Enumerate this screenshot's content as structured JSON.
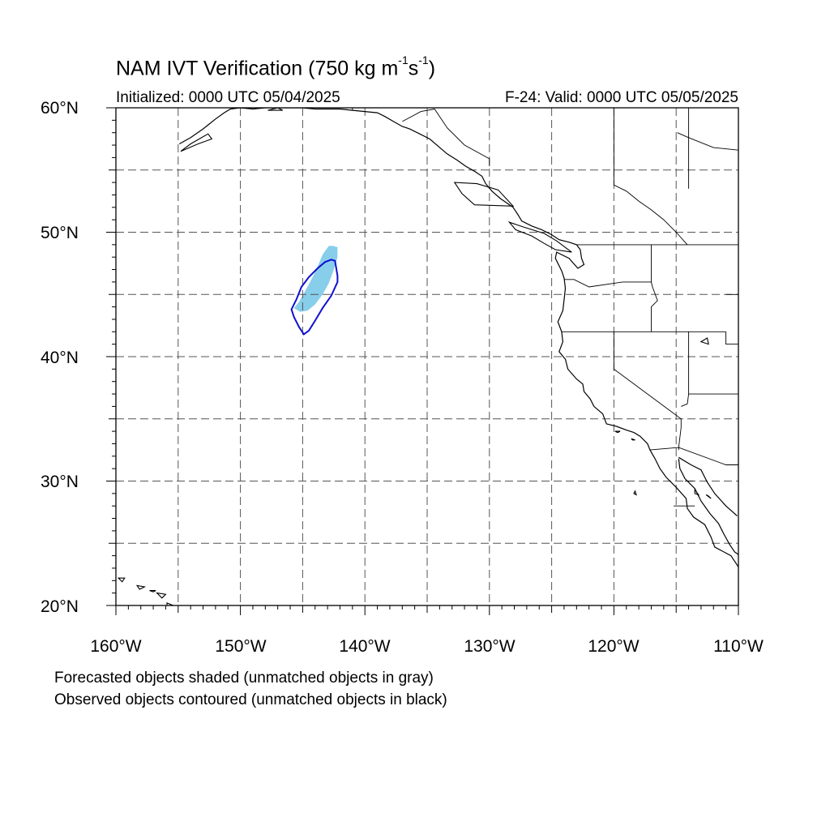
{
  "title": {
    "main": "NAM IVT Verification (750 kg m",
    "exp1": "-1",
    "mid": "s",
    "exp2": "-1",
    "end": ")"
  },
  "subtitle_left": "Initialized: 0000 UTC 05/04/2025",
  "subtitle_right": "F-24: Valid: 0000 UTC 05/05/2025",
  "notes": [
    "Forecasted objects shaded (unmatched objects in gray)",
    "Observed objects contoured (unmatched objects in black)"
  ],
  "map": {
    "lon_range": [
      -160,
      -110
    ],
    "lat_range": [
      20,
      60
    ],
    "lat_labels": [
      "60°N",
      "50°N",
      "40°N",
      "30°N",
      "20°N"
    ],
    "lon_labels": [
      "160°W",
      "150°W",
      "140°W",
      "130°W",
      "120°W",
      "110°W"
    ],
    "grid_style": "dashed every 5 degrees",
    "colors": {
      "forecast_object": "#87CEEB",
      "observed_object": "#1010D0",
      "coastline": "#000000",
      "grid": "#555555"
    },
    "forecast_object": [
      [
        -145.7,
        43.9
      ],
      [
        -145.3,
        44.4
      ],
      [
        -144.9,
        45.1
      ],
      [
        -144.4,
        46.0
      ],
      [
        -143.9,
        47.0
      ],
      [
        -143.4,
        48.2
      ],
      [
        -142.9,
        48.9
      ],
      [
        -142.6,
        48.9
      ],
      [
        -142.2,
        48.8
      ],
      [
        -142.2,
        48.0
      ],
      [
        -142.5,
        47.0
      ],
      [
        -142.9,
        45.9
      ],
      [
        -143.4,
        45.0
      ],
      [
        -144.0,
        44.2
      ],
      [
        -144.6,
        43.7
      ],
      [
        -145.2,
        43.6
      ]
    ],
    "observed_object": [
      [
        -145.9,
        43.8
      ],
      [
        -145.5,
        44.6
      ],
      [
        -145.1,
        45.6
      ],
      [
        -144.5,
        46.4
      ],
      [
        -143.8,
        47.1
      ],
      [
        -143.2,
        47.6
      ],
      [
        -142.7,
        47.8
      ],
      [
        -142.4,
        47.7
      ],
      [
        -142.2,
        46.5
      ],
      [
        -142.2,
        46.0
      ],
      [
        -142.7,
        44.9
      ],
      [
        -143.4,
        43.9
      ],
      [
        -144.0,
        42.9
      ],
      [
        -144.5,
        42.1
      ],
      [
        -144.9,
        41.8
      ],
      [
        -145.3,
        42.4
      ],
      [
        -145.7,
        43.2
      ]
    ],
    "coast_mainland": [
      [
        -154.9,
        57.1
      ],
      [
        -154.0,
        57.6
      ],
      [
        -153.0,
        58.3
      ],
      [
        -152.0,
        59.1
      ],
      [
        -151.3,
        59.6
      ],
      [
        -150.8,
        59.9
      ],
      [
        -150.0,
        60.0
      ],
      [
        -149.0,
        59.9
      ],
      [
        -148.0,
        60.0
      ],
      [
        -146.0,
        60.0
      ],
      [
        -145.0,
        60.0
      ],
      [
        -144.0,
        59.9
      ],
      [
        -142.0,
        59.9
      ],
      [
        -141.0,
        59.8
      ],
      [
        -140.0,
        59.7
      ],
      [
        -139.0,
        59.6
      ],
      [
        -138.4,
        59.3
      ],
      [
        -137.7,
        58.9
      ],
      [
        -137.0,
        58.5
      ],
      [
        -136.4,
        58.3
      ],
      [
        -135.6,
        57.9
      ],
      [
        -134.8,
        57.5
      ],
      [
        -134.1,
        56.9
      ],
      [
        -133.4,
        56.3
      ],
      [
        -132.6,
        55.8
      ],
      [
        -131.9,
        55.3
      ],
      [
        -131.2,
        54.9
      ],
      [
        -130.6,
        54.5
      ],
      [
        -130.3,
        53.9
      ],
      [
        -129.8,
        53.3
      ],
      [
        -129.1,
        52.7
      ],
      [
        -128.1,
        52.0
      ],
      [
        -127.7,
        51.4
      ],
      [
        -127.4,
        50.9
      ],
      [
        -126.6,
        50.5
      ],
      [
        -125.8,
        50.2
      ],
      [
        -125.0,
        49.8
      ],
      [
        -124.4,
        49.4
      ],
      [
        -123.6,
        49.2
      ],
      [
        -123.0,
        49.0
      ],
      [
        -122.7,
        48.6
      ],
      [
        -122.6,
        47.9
      ],
      [
        -122.4,
        47.4
      ],
      [
        -122.9,
        47.1
      ],
      [
        -123.6,
        47.9
      ],
      [
        -124.6,
        48.4
      ],
      [
        -124.7,
        47.9
      ],
      [
        -124.2,
        46.9
      ],
      [
        -124.0,
        46.3
      ],
      [
        -123.9,
        45.5
      ],
      [
        -124.0,
        44.6
      ],
      [
        -124.1,
        43.7
      ],
      [
        -124.5,
        42.8
      ],
      [
        -124.2,
        42.0
      ],
      [
        -124.1,
        41.2
      ],
      [
        -124.4,
        40.4
      ],
      [
        -123.9,
        39.8
      ],
      [
        -123.7,
        39.0
      ],
      [
        -123.0,
        38.2
      ],
      [
        -122.5,
        37.8
      ],
      [
        -122.4,
        37.2
      ],
      [
        -121.9,
        36.6
      ],
      [
        -121.6,
        36.0
      ],
      [
        -120.9,
        35.4
      ],
      [
        -120.6,
        34.6
      ],
      [
        -119.8,
        34.4
      ],
      [
        -119.0,
        34.1
      ],
      [
        -118.4,
        33.9
      ],
      [
        -117.9,
        33.6
      ],
      [
        -117.3,
        33.0
      ],
      [
        -117.1,
        32.5
      ],
      [
        -116.7,
        31.8
      ],
      [
        -116.3,
        31.0
      ],
      [
        -115.8,
        30.3
      ],
      [
        -115.0,
        29.5
      ],
      [
        -114.2,
        28.6
      ],
      [
        -114.1,
        27.8
      ],
      [
        -113.6,
        27.1
      ],
      [
        -112.7,
        26.5
      ],
      [
        -112.2,
        25.5
      ],
      [
        -111.9,
        24.7
      ],
      [
        -110.6,
        24.0
      ],
      [
        -110.0,
        23.1
      ]
    ],
    "coast_gulf": [
      [
        -114.8,
        31.8
      ],
      [
        -114.7,
        31.0
      ],
      [
        -114.3,
        30.2
      ],
      [
        -113.5,
        29.4
      ],
      [
        -113.0,
        28.4
      ],
      [
        -112.3,
        27.4
      ],
      [
        -111.6,
        26.6
      ],
      [
        -111.2,
        25.8
      ],
      [
        -110.7,
        24.9
      ],
      [
        -110.3,
        24.3
      ],
      [
        -110.0,
        24.1
      ]
    ],
    "coast_gulf_east": [
      [
        -114.8,
        31.9
      ],
      [
        -113.8,
        31.3
      ],
      [
        -113.0,
        30.9
      ],
      [
        -112.5,
        29.9
      ],
      [
        -111.9,
        29.0
      ],
      [
        -111.0,
        28.0
      ],
      [
        -110.1,
        27.2
      ]
    ],
    "boundaries": [
      [
        [
          -123.0,
          49.0
        ],
        [
          -110.0,
          49.0
        ]
      ],
      [
        [
          -117.0,
          49.0
        ],
        [
          -117.0,
          46.0
        ],
        [
          -116.9,
          45.6
        ],
        [
          -116.5,
          44.5
        ],
        [
          -117.0,
          44.0
        ],
        [
          -117.0,
          42.0
        ]
      ],
      [
        [
          -124.0,
          46.2
        ],
        [
          -123.2,
          46.2
        ],
        [
          -122.0,
          45.6
        ],
        [
          -119.3,
          46.0
        ],
        [
          -117.0,
          46.0
        ]
      ],
      [
        [
          -124.2,
          42.0
        ],
        [
          -111.0,
          42.0
        ]
      ],
      [
        [
          -120.0,
          42.0
        ],
        [
          -120.0,
          39.0
        ],
        [
          -114.6,
          35.0
        ],
        [
          -114.6,
          34.3
        ],
        [
          -114.8,
          32.7
        ],
        [
          -114.8,
          32.5
        ]
      ],
      [
        [
          -114.0,
          42.0
        ],
        [
          -114.0,
          37.0
        ],
        [
          -114.1,
          36.2
        ],
        [
          -114.6,
          36.0
        ]
      ],
      [
        [
          -114.0,
          37.0
        ],
        [
          -110.0,
          37.0
        ]
      ],
      [
        [
          -111.0,
          45.0
        ],
        [
          -110.0,
          45.0
        ]
      ],
      [
        [
          -111.0,
          42.0
        ],
        [
          -111.0,
          41.0
        ],
        [
          -110.0,
          41.0
        ]
      ],
      [
        [
          -117.1,
          32.5
        ],
        [
          -114.8,
          32.7
        ],
        [
          -111.0,
          31.3
        ],
        [
          -110.0,
          31.3
        ]
      ],
      [
        [
          -123.0,
          49.0
        ],
        [
          -123.0,
          49.0
        ]
      ],
      [
        [
          -114.0,
          53.5
        ],
        [
          -114.0,
          60.0
        ]
      ],
      [
        [
          -120.0,
          53.8
        ],
        [
          -120.0,
          60.0
        ]
      ],
      [
        [
          -120.0,
          53.8
        ],
        [
          -119.0,
          53.3
        ],
        [
          -118.0,
          52.5
        ],
        [
          -117.0,
          51.8
        ],
        [
          -116.0,
          51.0
        ],
        [
          -115.0,
          50.0
        ],
        [
          -114.1,
          49.0
        ]
      ],
      [
        [
          -141.0,
          60.0
        ],
        [
          -141.0,
          59.8
        ]
      ],
      [
        [
          -137.0,
          58.9
        ],
        [
          -135.5,
          59.7
        ],
        [
          -134.4,
          59.9
        ],
        [
          -133.4,
          58.4
        ],
        [
          -132.0,
          57.0
        ],
        [
          -130.0,
          55.9
        ],
        [
          -130.0,
          55.3
        ]
      ],
      [
        [
          -114.3,
          30.0
        ],
        [
          -113.6,
          30.0
        ]
      ],
      [
        [
          -115.2,
          28.0
        ],
        [
          -113.5,
          28.0
        ]
      ]
    ],
    "islands": [
      [
        [
          -128.1,
          52.1
        ],
        [
          -129.3,
          53.4
        ],
        [
          -131.0,
          53.9
        ],
        [
          -132.8,
          54.0
        ],
        [
          -132.2,
          53.1
        ],
        [
          -131.2,
          52.2
        ],
        [
          -128.1,
          52.1
        ]
      ],
      [
        [
          -128.4,
          50.8
        ],
        [
          -127.2,
          50.4
        ],
        [
          -125.6,
          49.9
        ],
        [
          -124.6,
          49.3
        ],
        [
          -123.4,
          48.4
        ],
        [
          -124.7,
          48.6
        ],
        [
          -125.6,
          49.1
        ],
        [
          -126.6,
          49.7
        ],
        [
          -127.9,
          50.2
        ],
        [
          -128.4,
          50.8
        ]
      ],
      [
        [
          -155.9,
          20.2
        ],
        [
          -155.4,
          20.0
        ],
        [
          -155.0,
          19.5
        ],
        [
          -155.6,
          19.0
        ],
        [
          -155.9,
          19.5
        ],
        [
          -155.9,
          20.2
        ]
      ],
      [
        [
          -156.7,
          21.0
        ],
        [
          -156.0,
          20.9
        ],
        [
          -156.3,
          20.6
        ],
        [
          -156.7,
          21.0
        ]
      ],
      [
        [
          -157.3,
          21.2
        ],
        [
          -156.8,
          21.2
        ],
        [
          -157.0,
          21.1
        ],
        [
          -157.3,
          21.2
        ]
      ],
      [
        [
          -158.3,
          21.6
        ],
        [
          -157.7,
          21.5
        ],
        [
          -158.1,
          21.3
        ],
        [
          -158.3,
          21.6
        ]
      ],
      [
        [
          -159.8,
          22.2
        ],
        [
          -159.3,
          22.2
        ],
        [
          -159.5,
          21.9
        ],
        [
          -159.8,
          22.2
        ]
      ],
      [
        [
          -154.8,
          56.5
        ],
        [
          -154.0,
          57.1
        ],
        [
          -152.6,
          57.9
        ],
        [
          -152.3,
          57.5
        ],
        [
          -153.4,
          57.1
        ],
        [
          -154.8,
          56.5
        ]
      ],
      [
        [
          -147.0,
          60.0
        ],
        [
          -146.6,
          59.8
        ],
        [
          -147.8,
          59.8
        ],
        [
          -147.0,
          60.0
        ]
      ],
      [
        [
          -118.6,
          33.4
        ],
        [
          -118.3,
          33.3
        ],
        [
          -118.5,
          33.3
        ],
        [
          -118.6,
          33.4
        ]
      ],
      [
        [
          -119.9,
          34.0
        ],
        [
          -119.5,
          34.0
        ],
        [
          -119.7,
          33.9
        ],
        [
          -119.9,
          34.0
        ]
      ],
      [
        [
          -118.3,
          29.2
        ],
        [
          -118.2,
          28.9
        ],
        [
          -118.4,
          29.0
        ],
        [
          -118.3,
          29.2
        ]
      ],
      [
        [
          -113.5,
          29.3
        ],
        [
          -113.2,
          28.9
        ],
        [
          -113.5,
          29.0
        ],
        [
          -113.5,
          29.3
        ]
      ],
      [
        [
          -112.6,
          28.9
        ],
        [
          -112.2,
          28.6
        ],
        [
          -112.4,
          28.8
        ],
        [
          -112.6,
          28.9
        ]
      ],
      [
        [
          -113.0,
          41.2
        ],
        [
          -112.4,
          41.0
        ],
        [
          -112.5,
          41.5
        ],
        [
          -113.0,
          41.2
        ]
      ]
    ],
    "lakes": [
      [
        [
          -114.9,
          58.0
        ],
        [
          -114.0,
          57.6
        ],
        [
          -112.0,
          56.8
        ],
        [
          -110.0,
          56.6
        ]
      ]
    ]
  }
}
